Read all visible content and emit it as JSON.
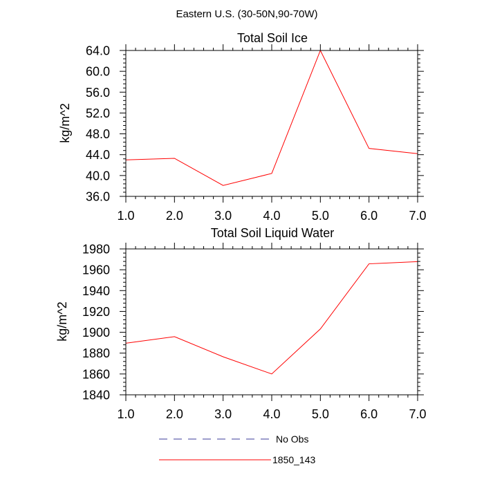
{
  "title": "Eastern U.S. (30-50N,90-70W)",
  "chart_data": [
    {
      "type": "line",
      "title": "Total Soil Ice",
      "xlabel": "",
      "ylabel": "kg/m^2",
      "xlim": [
        1.0,
        7.0
      ],
      "ylim": [
        36.0,
        64.0
      ],
      "x_ticks": [
        1.0,
        2.0,
        3.0,
        4.0,
        5.0,
        6.0,
        7.0
      ],
      "x_tick_labels": [
        "1.0",
        "2.0",
        "3.0",
        "4.0",
        "5.0",
        "6.0",
        "7.0"
      ],
      "y_ticks": [
        36.0,
        40.0,
        44.0,
        48.0,
        52.0,
        56.0,
        60.0,
        64.0
      ],
      "y_tick_labels": [
        "36.0",
        "40.0",
        "44.0",
        "48.0",
        "52.0",
        "56.0",
        "60.0",
        "64.0"
      ],
      "x": [
        1,
        2,
        3,
        4,
        5,
        6,
        7
      ],
      "series": [
        {
          "name": "1850_143",
          "color": "#ff0000",
          "values": [
            43.0,
            43.3,
            38.1,
            40.4,
            64.0,
            45.2,
            44.2
          ]
        }
      ]
    },
    {
      "type": "line",
      "title": "Total Soil Liquid Water",
      "xlabel": "",
      "ylabel": "kg/m^2",
      "xlim": [
        1.0,
        7.0
      ],
      "ylim": [
        1840,
        1980
      ],
      "x_ticks": [
        1.0,
        2.0,
        3.0,
        4.0,
        5.0,
        6.0,
        7.0
      ],
      "x_tick_labels": [
        "1.0",
        "2.0",
        "3.0",
        "4.0",
        "5.0",
        "6.0",
        "7.0"
      ],
      "y_ticks": [
        1840,
        1860,
        1880,
        1900,
        1920,
        1940,
        1960,
        1980
      ],
      "y_tick_labels": [
        "1840",
        "1860",
        "1880",
        "1900",
        "1920",
        "1940",
        "1960",
        "1980"
      ],
      "x": [
        1,
        2,
        3,
        4,
        5,
        6,
        7
      ],
      "series": [
        {
          "name": "1850_143",
          "color": "#ff0000",
          "values": [
            1889.5,
            1895.8,
            1876.5,
            1860.0,
            1903.2,
            1965.7,
            1967.8
          ]
        }
      ]
    }
  ],
  "legend": [
    {
      "label": "No Obs",
      "color": "#3a3a9a",
      "style": "dashed"
    },
    {
      "label": "1850_143",
      "color": "#ff0000",
      "style": "solid"
    }
  ]
}
